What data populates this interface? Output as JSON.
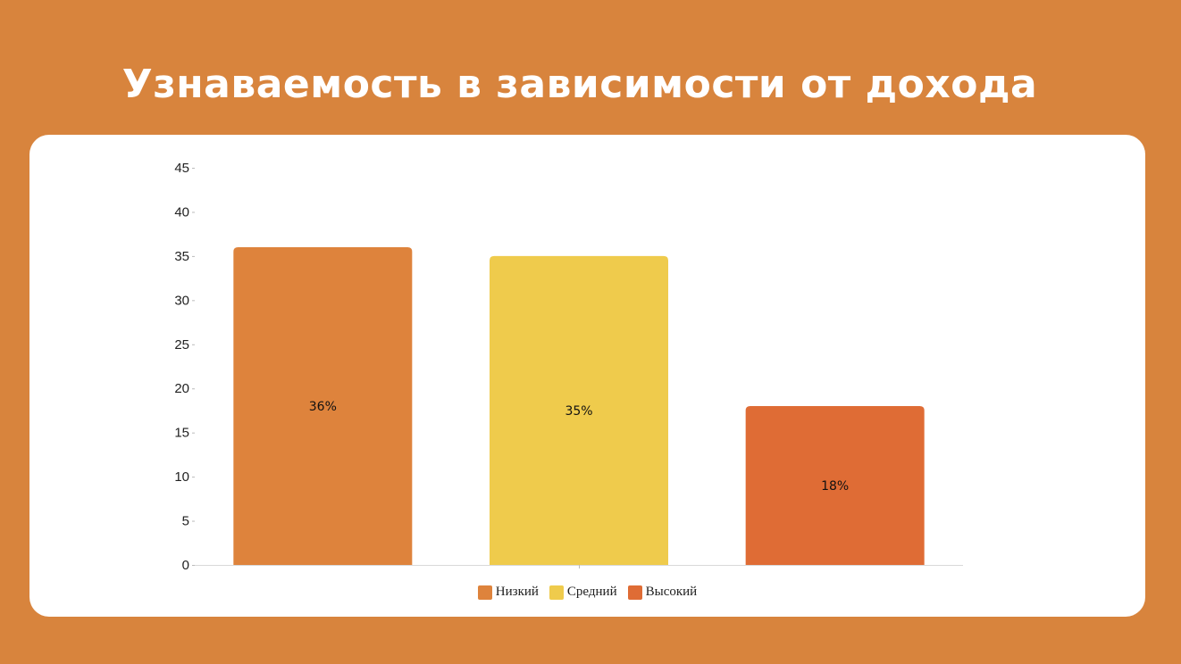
{
  "slide": {
    "title": "Узнаваемость в зависимости от дохода"
  },
  "chart_data": {
    "type": "bar",
    "title": "",
    "xlabel": "",
    "ylabel": "",
    "categories": [
      "Низкий",
      "Средний",
      "Высокий"
    ],
    "values": [
      36,
      35,
      18
    ],
    "data_labels": [
      "36%",
      "35%",
      "18%"
    ],
    "colors": [
      "#DE833C",
      "#EFCB4C",
      "#DF6C35"
    ],
    "ylim": [
      0,
      45
    ],
    "yticks": [
      "0",
      "5",
      "10",
      "15",
      "20",
      "25",
      "30",
      "35",
      "40",
      "45"
    ],
    "grid": false,
    "legend_placement": "bottom",
    "legend": [
      {
        "label": "Низкий",
        "color": "#DE833C"
      },
      {
        "label": "Средний",
        "color": "#EFCB4C"
      },
      {
        "label": "Высокий",
        "color": "#DF6C35"
      }
    ]
  }
}
